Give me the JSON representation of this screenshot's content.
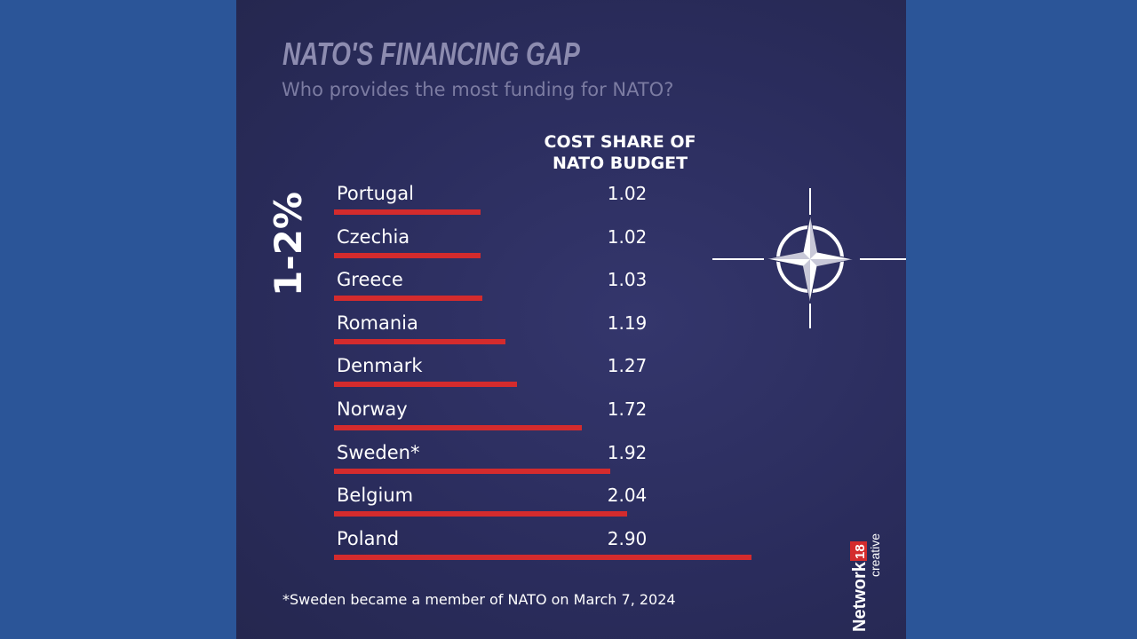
{
  "chart_data": {
    "type": "bar",
    "orientation": "horizontal",
    "title": "NATO'S FINANCING GAP",
    "subtitle": "Who provides the most funding for NATO?",
    "value_header": "COST SHARE OF NATO BUDGET",
    "group_label": "1-2%",
    "categories": [
      "Portugal",
      "Czechia",
      "Greece",
      "Romania",
      "Denmark",
      "Norway",
      "Sweden*",
      "Belgium",
      "Poland"
    ],
    "values": [
      1.02,
      1.02,
      1.03,
      1.19,
      1.27,
      1.72,
      1.92,
      2.04,
      2.9
    ],
    "value_labels": [
      "1.02",
      "1.02",
      "1.03",
      "1.19",
      "1.27",
      "1.72",
      "1.92",
      "2.04",
      "2.90"
    ],
    "bar_color": "#d42b2d",
    "footnote": "*Sweden became a member of NATO on March 7, 2024",
    "grid": false
  },
  "branding": {
    "network": "Network",
    "number": "18",
    "sub": "creative"
  },
  "colors": {
    "background": "#2b5598",
    "panel": "#2a2c5c",
    "accent": "#d42b2d"
  }
}
